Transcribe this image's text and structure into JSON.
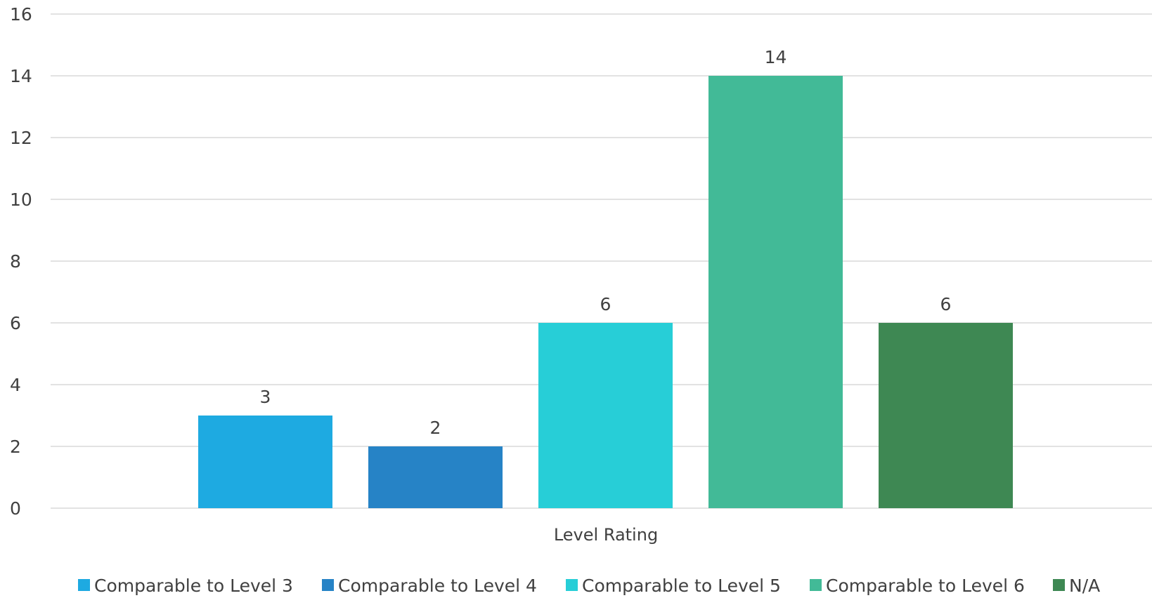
{
  "chart_data": {
    "type": "bar",
    "xlabel": "Level Rating",
    "ylabel": "",
    "ylim": [
      0,
      16
    ],
    "yticks": [
      0,
      2,
      4,
      6,
      8,
      10,
      12,
      14,
      16
    ],
    "grid": true,
    "legend_position": "bottom",
    "data_labels": true,
    "series": [
      {
        "name": "Comparable to Level 3",
        "value": 3,
        "color": "#1EAAE1"
      },
      {
        "name": "Comparable to Level 4",
        "value": 2,
        "color": "#2683C6"
      },
      {
        "name": "Comparable to Level 5",
        "value": 6,
        "color": "#27CED7"
      },
      {
        "name": "Comparable to Level 6",
        "value": 14,
        "color": "#42BA97"
      },
      {
        "name": "N/A",
        "value": 6,
        "color": "#3E8853"
      }
    ]
  }
}
